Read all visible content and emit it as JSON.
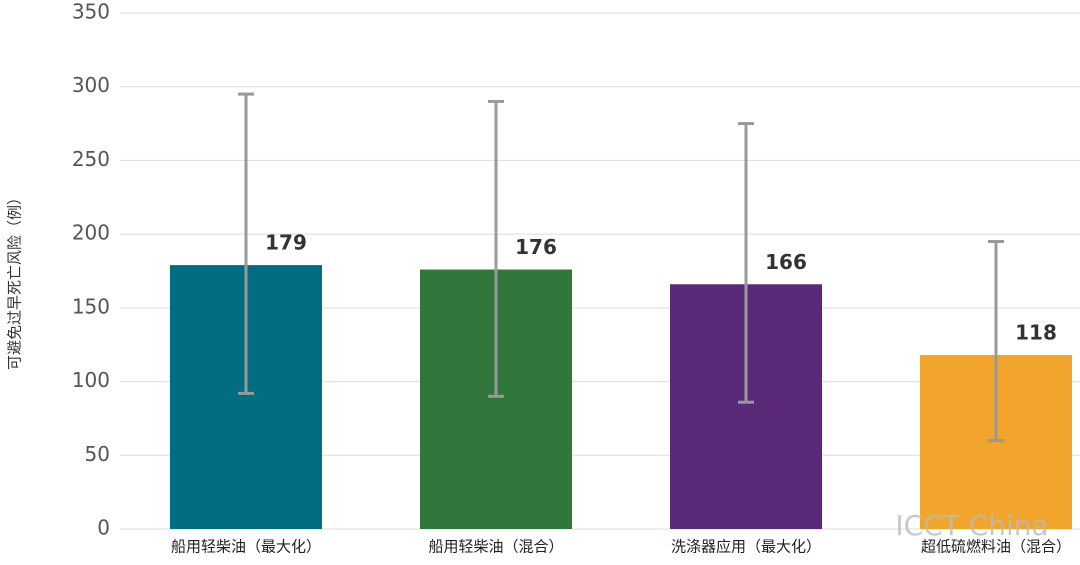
{
  "chart_data": {
    "type": "bar",
    "y_label": "可避免过早死亡风险（例）",
    "categories": [
      "船用轻柴油（最大化）",
      "船用轻柴油（混合）",
      "洗涤器应用（最大化）",
      "超低硫燃料油（混合）"
    ],
    "values": [
      179,
      176,
      166,
      118
    ],
    "colors": [
      "#006e80",
      "#31773c",
      "#5a2a78",
      "#f2a52c"
    ],
    "error_lower": [
      92,
      90,
      86,
      60
    ],
    "error_upper": [
      295,
      290,
      275,
      195
    ],
    "error_color": "#999999",
    "ylim": [
      0,
      350
    ],
    "yticks": [
      0,
      50,
      100,
      150,
      200,
      250,
      300,
      350
    ],
    "grid": true,
    "watermark": "ICCT China"
  }
}
